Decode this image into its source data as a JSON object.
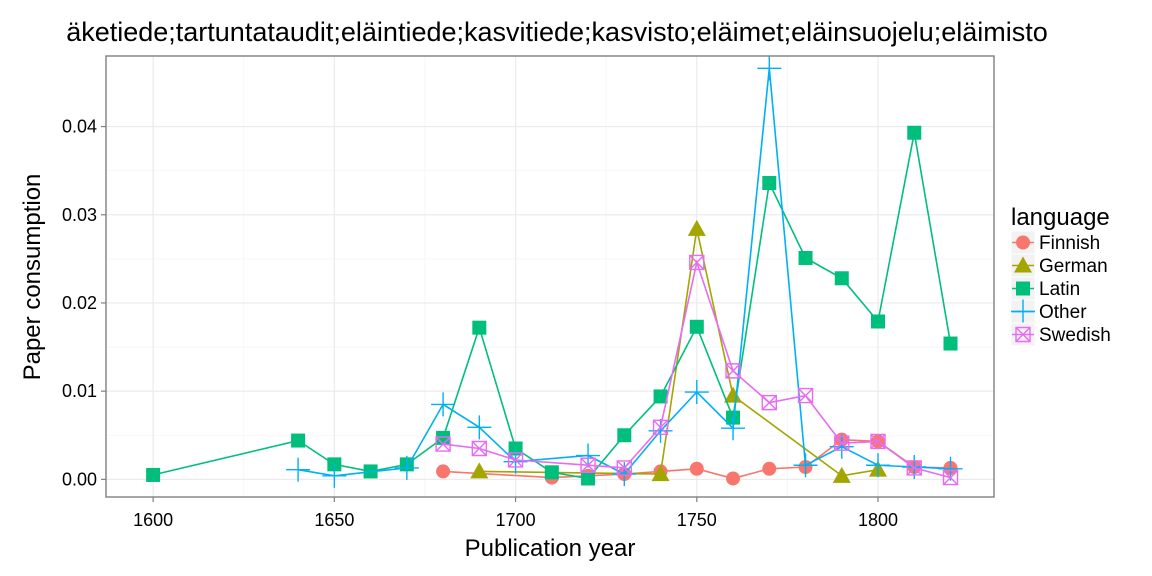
{
  "chart_data": {
    "type": "line",
    "title": "äketiede;tartuntataudit;eläintiede;kasvitiede;kasvisto;eläimet;eläinsuojelu;eläimisto",
    "xlabel": "Publication year",
    "ylabel": "Paper consumption",
    "xlim": [
      1587,
      1832
    ],
    "ylim": [
      -0.002,
      0.048
    ],
    "xticks": [
      1600,
      1650,
      1700,
      1750,
      1800
    ],
    "yticks": [
      0.0,
      0.01,
      0.02,
      0.03,
      0.04
    ],
    "ytick_labels": [
      "0.00",
      "0.01",
      "0.02",
      "0.03",
      "0.04"
    ],
    "grid": true,
    "legend": {
      "title": "language",
      "position": "right"
    },
    "series": [
      {
        "name": "Finnish",
        "color": "#F8766D",
        "marker": "circle",
        "x": [
          1680,
          1710,
          1720,
          1730,
          1740,
          1750,
          1760,
          1770,
          1780,
          1790,
          1800,
          1810,
          1820
        ],
        "y": [
          0.0009,
          0.0002,
          0.0004,
          0.0006,
          0.0009,
          0.0012,
          0.0001,
          0.0012,
          0.0014,
          0.0045,
          0.0043,
          0.0014,
          0.0013
        ]
      },
      {
        "name": "German",
        "color": "#A3A500",
        "marker": "triangle",
        "x": [
          1690,
          1740,
          1750,
          1760,
          1790,
          1800
        ],
        "y": [
          0.0009,
          0.0006,
          0.0284,
          0.0095,
          0.0004,
          0.0011
        ]
      },
      {
        "name": "Latin",
        "color": "#00BF7D",
        "marker": "square",
        "x": [
          1600,
          1640,
          1650,
          1660,
          1670,
          1680,
          1690,
          1700,
          1710,
          1720,
          1730,
          1740,
          1750,
          1760,
          1770,
          1780,
          1790,
          1800,
          1810,
          1820
        ],
        "y": [
          0.0005,
          0.0044,
          0.0017,
          0.0009,
          0.0017,
          0.0047,
          0.0172,
          0.0035,
          0.0008,
          0.0001,
          0.005,
          0.0094,
          0.0173,
          0.007,
          0.0336,
          0.0251,
          0.0228,
          0.0179,
          0.0393,
          0.0154
        ]
      },
      {
        "name": "Other",
        "color": "#00B0F6",
        "marker": "plus",
        "x": [
          1640,
          1650,
          1670,
          1680,
          1690,
          1700,
          1720,
          1730,
          1740,
          1750,
          1760,
          1770,
          1780,
          1790,
          1800,
          1810,
          1820
        ],
        "y": [
          0.0011,
          0.0004,
          0.0013,
          0.0085,
          0.0059,
          0.002,
          0.0027,
          0.0006,
          0.0055,
          0.0099,
          0.0058,
          0.0466,
          0.0016,
          0.0037,
          0.0016,
          0.0014,
          0.0012
        ]
      },
      {
        "name": "Swedish",
        "color": "#E76BF3",
        "marker": "boxcross",
        "x": [
          1680,
          1690,
          1700,
          1720,
          1730,
          1740,
          1750,
          1760,
          1770,
          1780,
          1790,
          1800,
          1810,
          1820
        ],
        "y": [
          0.004,
          0.0035,
          0.0022,
          0.0016,
          0.0013,
          0.0059,
          0.0246,
          0.0123,
          0.0087,
          0.0095,
          0.0041,
          0.0043,
          0.0013,
          0.0002
        ]
      }
    ]
  }
}
